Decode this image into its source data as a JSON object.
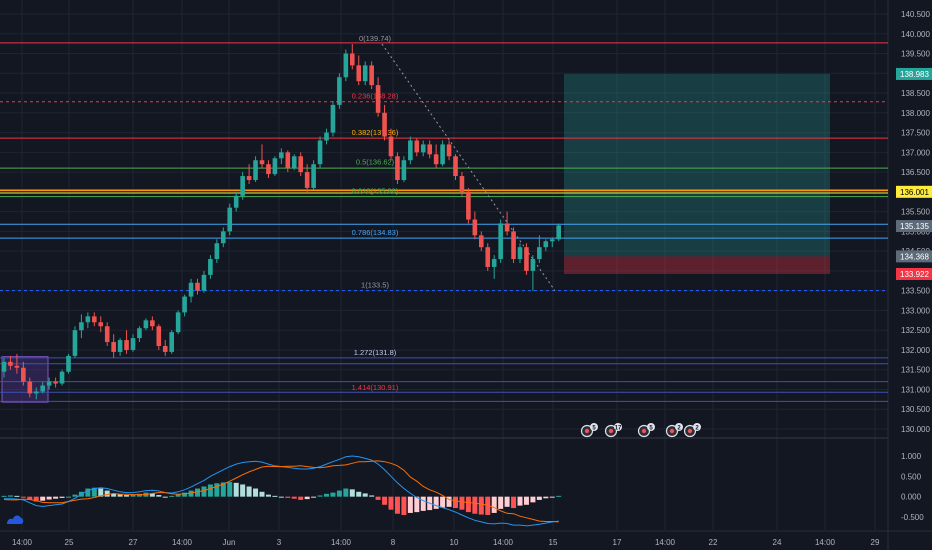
{
  "chart_data": {
    "type": "candlestick",
    "price_axis": {
      "ticks": [
        "140.500",
        "140.000",
        "139.500",
        "139.000",
        "138.500",
        "138.000",
        "137.500",
        "137.000",
        "136.500",
        "136.000",
        "135.500",
        "135.000",
        "134.500",
        "134.000",
        "133.500",
        "133.000",
        "132.500",
        "132.000",
        "131.500",
        "131.000",
        "130.500",
        "130.000"
      ],
      "range": [
        129.9,
        140.7
      ]
    },
    "price_labels": [
      {
        "value": "138.983",
        "color": "#26a69a",
        "text_color": "#ffffff"
      },
      {
        "value": "136.001",
        "color": "#ffeb3b",
        "text_color": "#000000"
      },
      {
        "value": "135.135",
        "color": "#5d6a7a",
        "text_color": "#ffffff"
      },
      {
        "value": "134.368",
        "color": "#5d6a7a",
        "text_color": "#ffffff"
      },
      {
        "value": "133.922",
        "color": "#f23645",
        "text_color": "#ffffff"
      }
    ],
    "time_axis": [
      "14:00",
      "25",
      "27",
      "14:00",
      "Jun",
      "3",
      "14:00",
      "8",
      "10",
      "14:00",
      "15",
      "17",
      "14:00",
      "22",
      "24",
      "14:00",
      "29"
    ],
    "fibonacci": [
      {
        "label": "0(139.74)",
        "price": 139.74,
        "color": "#9598a1"
      },
      {
        "label": "0.236(138.28)",
        "price": 138.28,
        "color": "#f23645"
      },
      {
        "label": "0.382(137.36)",
        "price": 137.36,
        "color": "#ffb300"
      },
      {
        "label": "0.5(136.62)",
        "price": 136.62,
        "color": "#4caf50"
      },
      {
        "label": "0.618(135.88)",
        "price": 135.88,
        "color": "#4caf50"
      },
      {
        "label": "0.786(134.83)",
        "price": 134.83,
        "color": "#42a5f5"
      },
      {
        "label": "1(133.5)",
        "price": 133.5,
        "color": "#9598a1"
      },
      {
        "label": "1.272(131.8)",
        "price": 131.8,
        "color": "#c5cae9"
      },
      {
        "label": "1.414(130.91)",
        "price": 130.91,
        "color": "#f23645"
      }
    ],
    "horizontal_levels": [
      {
        "price": 139.77,
        "color": "#f23645",
        "style": "solid"
      },
      {
        "price": 138.28,
        "color": "#f23645",
        "style": "dashed"
      },
      {
        "price": 137.36,
        "color": "#f23645",
        "style": "solid"
      },
      {
        "price": 136.6,
        "color": "#4caf50",
        "style": "solid"
      },
      {
        "price": 136.04,
        "color": "#ff9800",
        "style": "solid"
      },
      {
        "price": 135.97,
        "color": "#ffeb3b",
        "style": "solid"
      },
      {
        "price": 135.88,
        "color": "#4caf50",
        "style": "solid"
      },
      {
        "price": 135.18,
        "color": "#42a5f5",
        "style": "solid"
      },
      {
        "price": 134.83,
        "color": "#42a5f5",
        "style": "solid"
      },
      {
        "price": 133.5,
        "color": "#2962ff",
        "style": "dashed"
      },
      {
        "price": 131.8,
        "color": "#3f51b5",
        "style": "solid"
      },
      {
        "price": 131.65,
        "color": "#3f51b5",
        "style": "solid"
      },
      {
        "price": 131.2,
        "color": "#3f51b5",
        "style": "solid"
      },
      {
        "price": 130.93,
        "color": "#3f51b5",
        "style": "solid"
      },
      {
        "price": 130.7,
        "color": "#3f51b5",
        "style": "solid"
      }
    ],
    "position": {
      "entry": 134.368,
      "target": 138.983,
      "stop": 133.922,
      "profit_color": "#26a69a",
      "loss_color": "#f23645"
    },
    "ohlc": [
      [
        131.45,
        131.8,
        131.3,
        131.7
      ],
      [
        131.7,
        131.85,
        131.5,
        131.6
      ],
      [
        131.6,
        131.9,
        131.4,
        131.55
      ],
      [
        131.55,
        131.7,
        131.1,
        131.2
      ],
      [
        131.2,
        131.3,
        130.8,
        130.9
      ],
      [
        130.9,
        131.05,
        130.75,
        130.95
      ],
      [
        130.95,
        131.2,
        130.9,
        131.1
      ],
      [
        131.1,
        131.3,
        131.0,
        131.2
      ],
      [
        131.2,
        131.3,
        131.05,
        131.15
      ],
      [
        131.15,
        131.5,
        131.1,
        131.45
      ],
      [
        131.45,
        131.9,
        131.4,
        131.85
      ],
      [
        131.85,
        132.6,
        131.8,
        132.5
      ],
      [
        132.5,
        132.9,
        132.3,
        132.7
      ],
      [
        132.7,
        132.95,
        132.55,
        132.85
      ],
      [
        132.85,
        132.95,
        132.6,
        132.7
      ],
      [
        132.7,
        132.85,
        132.45,
        132.6
      ],
      [
        132.6,
        132.7,
        132.1,
        132.2
      ],
      [
        132.2,
        132.4,
        131.8,
        131.95
      ],
      [
        131.95,
        132.3,
        131.85,
        132.25
      ],
      [
        132.25,
        132.5,
        131.9,
        132.0
      ],
      [
        132.0,
        132.4,
        131.95,
        132.3
      ],
      [
        132.3,
        132.6,
        132.2,
        132.55
      ],
      [
        132.55,
        132.8,
        132.5,
        132.75
      ],
      [
        132.75,
        132.85,
        132.5,
        132.6
      ],
      [
        132.6,
        132.65,
        132.0,
        132.1
      ],
      [
        132.1,
        132.25,
        131.85,
        131.95
      ],
      [
        131.95,
        132.5,
        131.9,
        132.45
      ],
      [
        132.45,
        133.0,
        132.4,
        132.95
      ],
      [
        132.95,
        133.4,
        132.85,
        133.35
      ],
      [
        133.35,
        133.8,
        133.2,
        133.7
      ],
      [
        133.7,
        133.8,
        133.4,
        133.5
      ],
      [
        133.5,
        134.0,
        133.45,
        133.9
      ],
      [
        133.9,
        134.4,
        133.8,
        134.3
      ],
      [
        134.3,
        134.8,
        134.2,
        134.7
      ],
      [
        134.7,
        135.1,
        134.6,
        135.0
      ],
      [
        135.0,
        135.7,
        134.9,
        135.6
      ],
      [
        135.6,
        136.0,
        135.5,
        135.9
      ],
      [
        135.9,
        136.5,
        135.8,
        136.4
      ],
      [
        136.4,
        136.7,
        136.2,
        136.3
      ],
      [
        136.3,
        136.9,
        136.25,
        136.8
      ],
      [
        136.8,
        137.2,
        136.6,
        136.7
      ],
      [
        136.7,
        136.8,
        136.35,
        136.45
      ],
      [
        136.45,
        136.9,
        136.4,
        136.85
      ],
      [
        136.85,
        137.1,
        136.7,
        137.0
      ],
      [
        137.0,
        137.05,
        136.5,
        136.6
      ],
      [
        136.6,
        136.95,
        136.55,
        136.9
      ],
      [
        136.9,
        137.0,
        136.4,
        136.5
      ],
      [
        136.5,
        136.7,
        135.95,
        136.1
      ],
      [
        136.1,
        136.8,
        136.05,
        136.7
      ],
      [
        136.7,
        137.4,
        136.6,
        137.3
      ],
      [
        137.3,
        137.6,
        137.2,
        137.5
      ],
      [
        137.5,
        138.3,
        137.4,
        138.2
      ],
      [
        138.2,
        139.0,
        138.1,
        138.9
      ],
      [
        138.9,
        139.6,
        138.8,
        139.5
      ],
      [
        139.5,
        139.74,
        139.1,
        139.2
      ],
      [
        139.2,
        139.45,
        138.7,
        138.8
      ],
      [
        138.8,
        139.3,
        138.7,
        139.2
      ],
      [
        139.2,
        139.3,
        138.6,
        138.7
      ],
      [
        138.7,
        138.9,
        137.9,
        138.0
      ],
      [
        138.0,
        138.2,
        137.3,
        137.4
      ],
      [
        137.4,
        137.6,
        136.8,
        136.9
      ],
      [
        136.9,
        137.0,
        136.2,
        136.3
      ],
      [
        136.3,
        136.9,
        136.25,
        136.8
      ],
      [
        136.8,
        137.4,
        136.7,
        137.3
      ],
      [
        137.3,
        137.35,
        136.9,
        137.0
      ],
      [
        137.0,
        137.3,
        136.9,
        137.2
      ],
      [
        137.2,
        137.3,
        136.85,
        136.95
      ],
      [
        136.95,
        137.2,
        136.6,
        136.7
      ],
      [
        136.7,
        137.3,
        136.65,
        137.2
      ],
      [
        137.2,
        137.3,
        136.8,
        136.9
      ],
      [
        136.9,
        136.95,
        136.3,
        136.4
      ],
      [
        136.4,
        136.5,
        135.9,
        136.0
      ],
      [
        136.0,
        136.1,
        135.2,
        135.3
      ],
      [
        135.3,
        135.5,
        134.8,
        134.9
      ],
      [
        134.9,
        135.0,
        134.5,
        134.6
      ],
      [
        134.6,
        134.7,
        134.0,
        134.1
      ],
      [
        134.1,
        134.4,
        133.8,
        134.3
      ],
      [
        134.3,
        135.3,
        134.2,
        135.2
      ],
      [
        135.2,
        135.5,
        134.9,
        135.0
      ],
      [
        135.0,
        135.1,
        134.2,
        134.3
      ],
      [
        134.3,
        134.7,
        134.2,
        134.6
      ],
      [
        134.6,
        134.7,
        133.9,
        134.0
      ],
      [
        134.0,
        134.4,
        133.5,
        134.3
      ],
      [
        134.3,
        134.9,
        134.2,
        134.6
      ],
      [
        134.6,
        134.8,
        134.5,
        134.75
      ],
      [
        134.75,
        134.85,
        134.6,
        134.8
      ],
      [
        134.8,
        135.2,
        134.75,
        135.15
      ]
    ],
    "macd": {
      "axis_ticks": [
        "1.000",
        "0.500",
        "0.000",
        "-0.500"
      ],
      "range": [
        -0.8,
        1.3
      ],
      "histogram": [
        0.02,
        0.03,
        0.02,
        -0.02,
        -0.08,
        -0.12,
        -0.1,
        -0.07,
        -0.05,
        -0.03,
        0.0,
        0.05,
        0.12,
        0.2,
        0.22,
        0.2,
        0.15,
        0.08,
        0.06,
        0.04,
        0.05,
        0.07,
        0.1,
        0.08,
        0.04,
        0.0,
        0.02,
        0.06,
        0.1,
        0.15,
        0.2,
        0.25,
        0.3,
        0.33,
        0.35,
        0.36,
        0.34,
        0.3,
        0.25,
        0.2,
        0.12,
        0.05,
        0.02,
        0.0,
        -0.03,
        -0.05,
        -0.08,
        -0.06,
        -0.02,
        0.03,
        0.07,
        0.1,
        0.15,
        0.2,
        0.18,
        0.12,
        0.08,
        0.03,
        -0.08,
        -0.2,
        -0.32,
        -0.42,
        -0.45,
        -0.4,
        -0.38,
        -0.35,
        -0.33,
        -0.3,
        -0.27,
        -0.25,
        -0.28,
        -0.32,
        -0.38,
        -0.42,
        -0.44,
        -0.45,
        -0.4,
        -0.3,
        -0.25,
        -0.28,
        -0.22,
        -0.2,
        -0.14,
        -0.08,
        -0.04,
        -0.01,
        0.02
      ],
      "macd_line": [
        -0.05,
        -0.05,
        -0.06,
        -0.08,
        -0.15,
        -0.22,
        -0.24,
        -0.22,
        -0.2,
        -0.18,
        -0.12,
        -0.04,
        0.06,
        0.15,
        0.2,
        0.22,
        0.2,
        0.16,
        0.12,
        0.1,
        0.1,
        0.12,
        0.15,
        0.16,
        0.14,
        0.1,
        0.09,
        0.12,
        0.17,
        0.24,
        0.32,
        0.4,
        0.5,
        0.58,
        0.66,
        0.74,
        0.8,
        0.84,
        0.86,
        0.87,
        0.85,
        0.8,
        0.76,
        0.74,
        0.72,
        0.7,
        0.68,
        0.68,
        0.7,
        0.74,
        0.8,
        0.86,
        0.92,
        0.98,
        1.0,
        0.98,
        0.94,
        0.9,
        0.8,
        0.66,
        0.5,
        0.34,
        0.2,
        0.08,
        -0.02,
        -0.1,
        -0.16,
        -0.22,
        -0.27,
        -0.32,
        -0.38,
        -0.45,
        -0.52,
        -0.58,
        -0.62,
        -0.66,
        -0.67,
        -0.65,
        -0.66,
        -0.7,
        -0.7,
        -0.72,
        -0.7,
        -0.68,
        -0.65,
        -0.62,
        -0.6
      ],
      "signal_line": [
        -0.07,
        -0.08,
        -0.08,
        -0.06,
        -0.07,
        -0.1,
        -0.14,
        -0.15,
        -0.15,
        -0.15,
        -0.12,
        -0.09,
        -0.06,
        -0.05,
        -0.02,
        0.02,
        0.05,
        0.08,
        0.06,
        0.06,
        0.05,
        0.05,
        0.05,
        0.08,
        0.1,
        0.1,
        0.07,
        0.06,
        0.07,
        0.09,
        0.12,
        0.15,
        0.2,
        0.25,
        0.31,
        0.38,
        0.46,
        0.54,
        0.61,
        0.67,
        0.73,
        0.75,
        0.74,
        0.74,
        0.75,
        0.75,
        0.76,
        0.74,
        0.72,
        0.71,
        0.73,
        0.76,
        0.77,
        0.78,
        0.82,
        0.86,
        0.86,
        0.87,
        0.88,
        0.86,
        0.82,
        0.76,
        0.65,
        0.48,
        0.38,
        0.25,
        0.17,
        0.11,
        0.03,
        -0.07,
        -0.1,
        -0.13,
        -0.14,
        -0.16,
        -0.18,
        -0.21,
        -0.27,
        -0.35,
        -0.41,
        -0.42,
        -0.48,
        -0.52,
        -0.56,
        -0.6,
        -0.61,
        -0.61,
        -0.62
      ]
    },
    "event_badges": [
      "5",
      "17",
      "5",
      "2",
      "2"
    ],
    "colors": {
      "up": "#26a69a",
      "down": "#ef5350",
      "background": "#131722",
      "grid": "#1f2433",
      "macd": "#2196f3",
      "signal": "#ff6d00"
    },
    "grid": true
  }
}
